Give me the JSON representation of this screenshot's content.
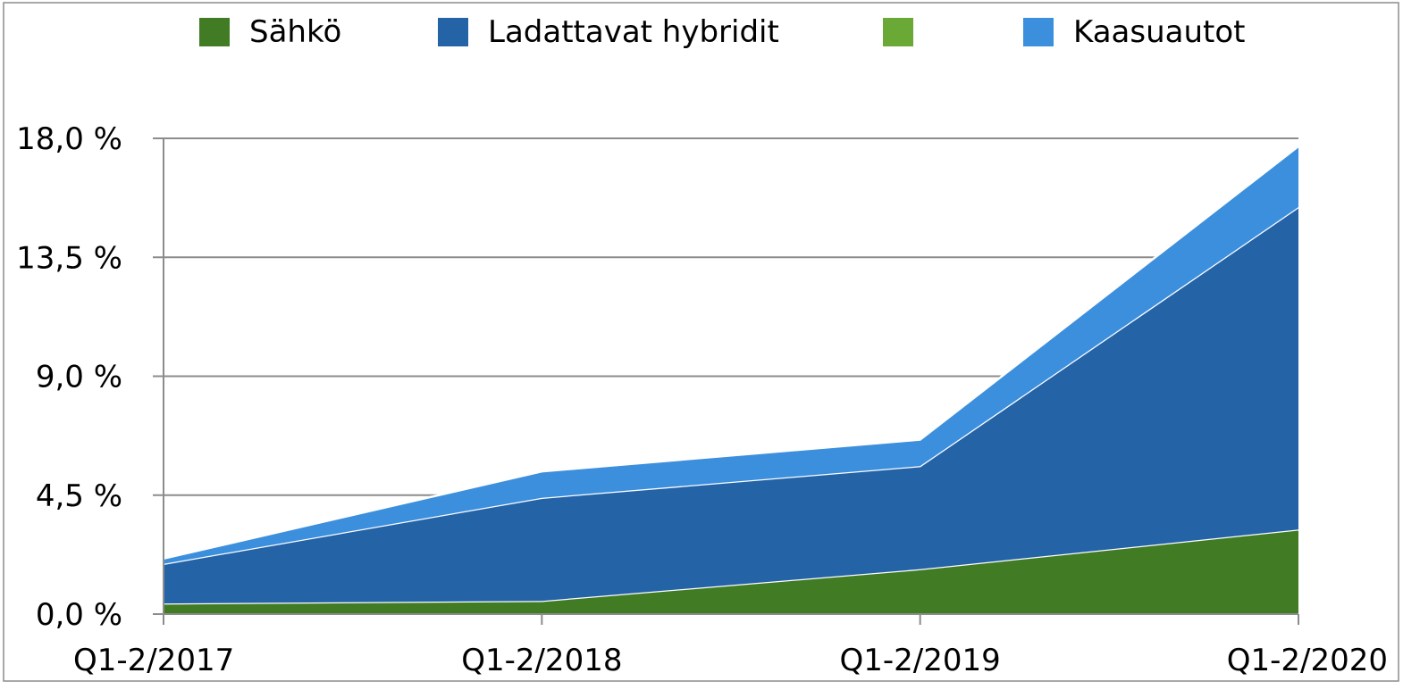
{
  "chart_data": {
    "type": "area",
    "stacked": true,
    "categories": [
      "Q1-2/2017",
      "Q1-2/2018",
      "Q1-2/2019",
      "Q1-2/2020"
    ],
    "series": [
      {
        "name": "Sähkö",
        "color": "#417b23",
        "values": [
          0.4,
          0.5,
          1.7,
          3.2
        ]
      },
      {
        "name": "Ladattavat hybridit",
        "color": "#2563a7",
        "values": [
          1.5,
          3.9,
          3.9,
          12.2
        ]
      },
      {
        "name": "",
        "color": "#6aa936",
        "values": [
          0.0,
          0.0,
          0.0,
          0.0
        ]
      },
      {
        "name": "Kaasuautot",
        "color": "#3b8fdd",
        "values": [
          0.2,
          1.0,
          1.0,
          2.3
        ]
      }
    ],
    "yticks": [
      "0,0 %",
      "4,5 %",
      "9,0 %",
      "13,5 %",
      "18,0 %"
    ],
    "ytick_values": [
      0,
      4.5,
      9,
      13.5,
      18
    ],
    "ylim": [
      0,
      18
    ],
    "grid": true,
    "legend_position": "top"
  }
}
